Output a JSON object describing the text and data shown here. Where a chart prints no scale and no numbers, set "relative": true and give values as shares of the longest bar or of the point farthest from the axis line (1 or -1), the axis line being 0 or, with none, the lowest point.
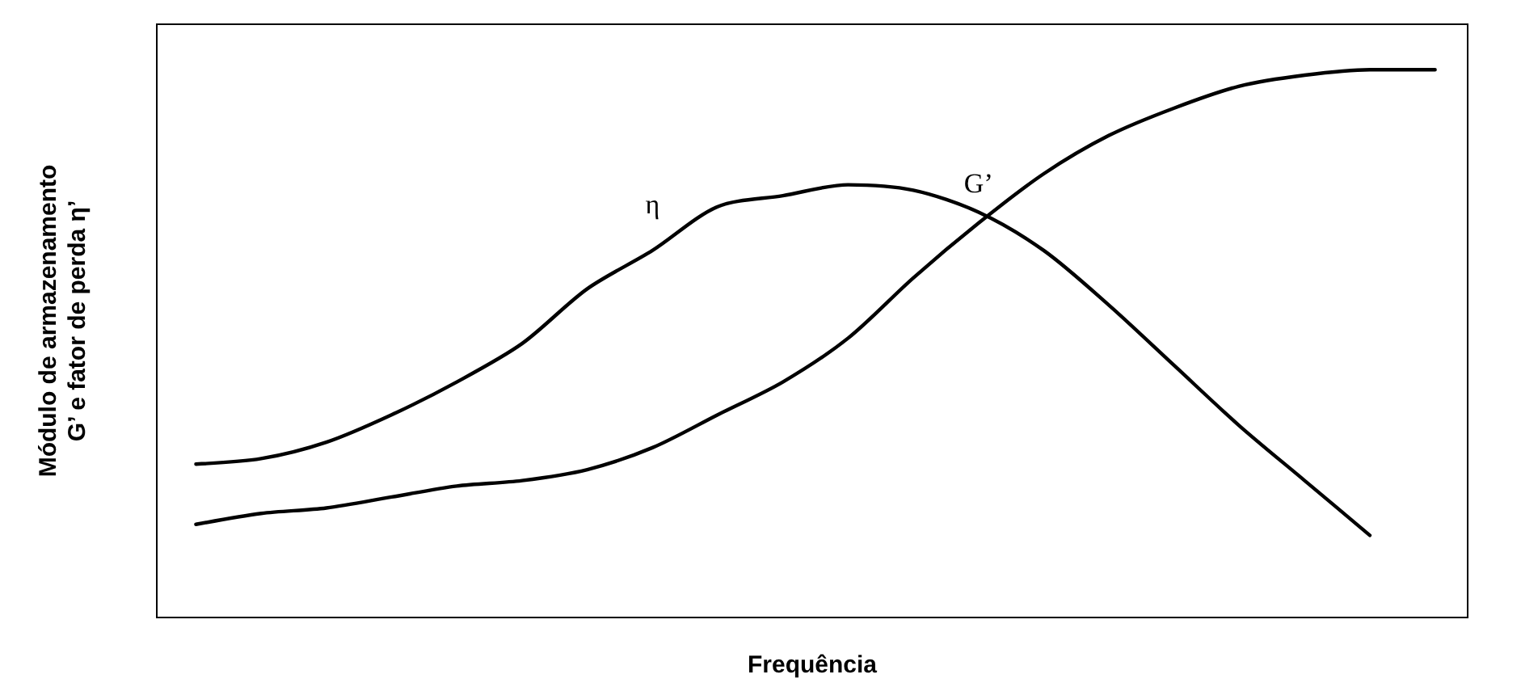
{
  "chart_data": {
    "type": "line",
    "relative": true,
    "xlabel": "Frequência",
    "ylabel": "Módulo de armazenamento G’ e fator de perda η’",
    "categories": [
      null,
      null,
      null,
      null,
      null,
      null,
      null,
      null,
      null,
      null,
      null,
      null,
      null,
      null,
      null,
      null,
      null,
      null,
      null,
      null
    ],
    "series": [
      {
        "name": "η",
        "color": "#000000",
        "values": [
          0.28,
          0.29,
          0.32,
          0.37,
          0.43,
          0.5,
          0.6,
          0.67,
          0.75,
          0.77,
          0.79,
          0.78,
          0.74,
          0.67,
          0.57,
          0.46,
          0.35,
          0.25,
          0.15,
          null
        ]
      },
      {
        "name": "G’",
        "color": "#000000",
        "values": [
          0.17,
          0.19,
          0.2,
          0.22,
          0.24,
          0.25,
          0.27,
          0.31,
          0.37,
          0.43,
          0.51,
          0.62,
          0.72,
          0.81,
          0.88,
          0.93,
          0.97,
          0.99,
          1.0,
          1.0
        ]
      }
    ],
    "grid": false,
    "legend": false,
    "marker": "none",
    "line_style": "solid"
  }
}
